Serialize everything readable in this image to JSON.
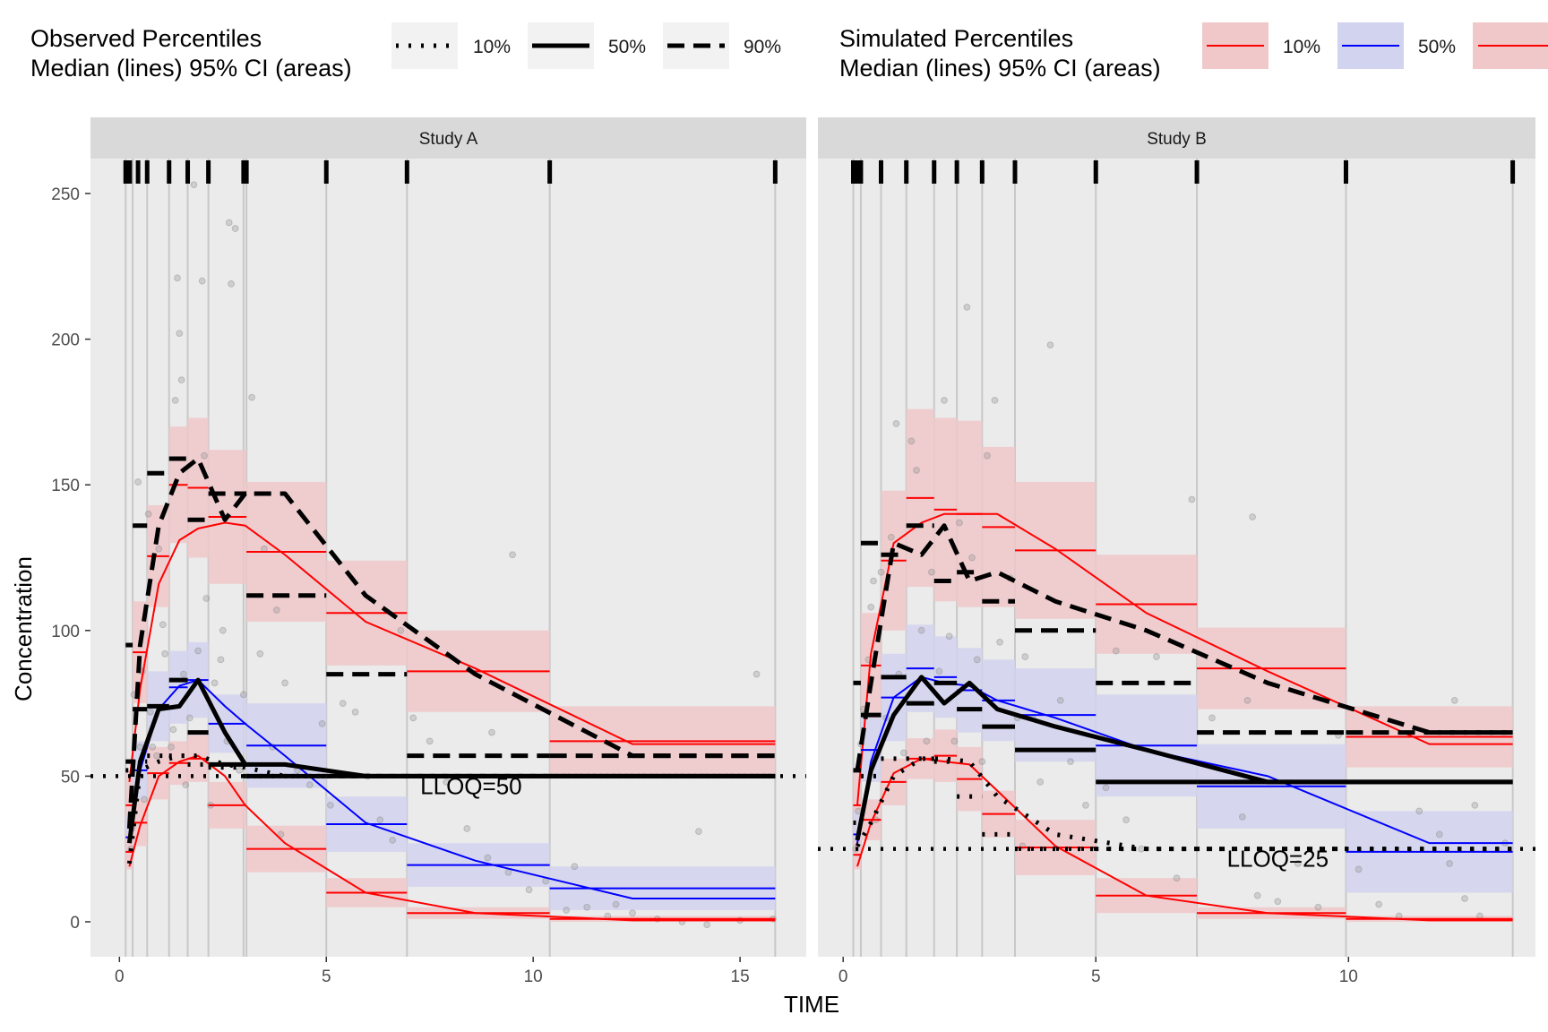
{
  "legend": {
    "observed": {
      "title_line1": "Observed Percentiles",
      "title_line2": "Median (lines) 95% CI (areas)",
      "items": [
        {
          "label": "10%",
          "dash": "dotted"
        },
        {
          "label": "50%",
          "dash": "solid"
        },
        {
          "label": "90%",
          "dash": "dashed"
        }
      ]
    },
    "simulated": {
      "title_line1": "Simulated Percentiles",
      "title_line2": "Median (lines) 95% CI (areas)",
      "items": [
        {
          "label": "10%",
          "color": "#ff0000",
          "fill": "#f0c8ca"
        },
        {
          "label": "50%",
          "color": "#0000ff",
          "fill": "#d2d3ef"
        },
        {
          "label": "",
          "color": "#ff0000",
          "fill": "#f0c8ca"
        }
      ]
    }
  },
  "axes": {
    "xlabel": "TIME",
    "ylabel": "Concentration",
    "ylim": [
      -12,
      262
    ],
    "yticks": [
      0,
      50,
      100,
      150,
      200,
      250
    ]
  },
  "colors": {
    "panel_bg": "#ebebeb",
    "strip_bg": "#d9d9d9",
    "gridline": "#c8c8c8",
    "sim_lo_hi": "#ff0000",
    "sim_med": "#0000ff",
    "ci_lo_hi": "#f0c8ca",
    "ci_med": "#d2d3ef",
    "points": "#999999"
  },
  "chart_data": [
    {
      "type": "line",
      "panel": "Study A",
      "xlim": [
        -0.7,
        16.6
      ],
      "xticks": [
        0,
        5,
        10,
        15
      ],
      "lloq": 50,
      "lloq_label": "LLOQ=50",
      "lloq_label_x": 8.5,
      "bins": [
        {
          "lo": 0.15,
          "hi": 0.32
        },
        {
          "lo": 0.32,
          "hi": 0.67
        },
        {
          "lo": 0.67,
          "hi": 1.2
        },
        {
          "lo": 1.2,
          "hi": 1.65
        },
        {
          "lo": 1.65,
          "hi": 2.15
        },
        {
          "lo": 2.15,
          "hi": 3.0
        },
        {
          "lo": 3.0,
          "hi": 3.07
        },
        {
          "lo": 3.07,
          "hi": 5.0
        },
        {
          "lo": 5.0,
          "hi": 6.95
        },
        {
          "lo": 6.95,
          "hi": 10.4
        },
        {
          "lo": 10.4,
          "hi": 15.85
        }
      ],
      "bin_edges": [
        0.15,
        0.32,
        0.67,
        1.2,
        1.65,
        2.15,
        3.0,
        3.07,
        5.0,
        6.95,
        10.4,
        15.85
      ],
      "sim_ci": {
        "p10": [
          [
            18,
            30
          ],
          [
            26,
            42
          ],
          [
            42,
            60
          ],
          [
            47,
            62
          ],
          [
            48,
            64
          ],
          [
            32,
            48
          ],
          [
            32,
            48
          ],
          [
            17,
            33
          ],
          [
            5,
            15
          ],
          [
            1,
            5
          ],
          [
            0,
            2
          ]
        ],
        "p50": [
          [
            22,
            36
          ],
          [
            42,
            62
          ],
          [
            62,
            86
          ],
          [
            68,
            93
          ],
          [
            70,
            96
          ],
          [
            58,
            78
          ],
          [
            58,
            78
          ],
          [
            46,
            75
          ],
          [
            24,
            43
          ],
          [
            12,
            27
          ],
          [
            4,
            19
          ]
        ],
        "p90": [
          [
            28,
            52
          ],
          [
            75,
            110
          ],
          [
            108,
            143
          ],
          [
            130,
            170
          ],
          [
            125,
            173
          ],
          [
            116,
            162
          ],
          [
            116,
            162
          ],
          [
            103,
            151
          ],
          [
            88,
            124
          ],
          [
            72,
            100
          ],
          [
            50,
            74
          ]
        ]
      },
      "sim_median": {
        "x": [
          0.24,
          0.5,
          0.95,
          1.45,
          1.9,
          2.55,
          3.04,
          4.0,
          5.95,
          8.6,
          12.4,
          15.85
        ],
        "p10": [
          19,
          33,
          50,
          55,
          57,
          50,
          40,
          27,
          10,
          3,
          0.5,
          0.5
        ],
        "p50": [
          30,
          52,
          73,
          81,
          83,
          74,
          68,
          57,
          34,
          21,
          8,
          8
        ],
        "p90": [
          48,
          80,
          116,
          131,
          135,
          137,
          136,
          126,
          103,
          87,
          61,
          61
        ]
      },
      "obs_median": {
        "x": [
          0.24,
          0.5,
          0.95,
          1.45,
          1.9,
          2.55,
          3.04,
          4.0,
          5.95,
          8.6,
          12.4,
          15.85
        ],
        "p10": [
          20,
          52,
          55,
          57,
          57,
          54,
          53,
          50,
          50,
          50,
          50,
          50
        ],
        "p50": [
          27,
          55,
          73,
          74,
          83,
          65,
          54,
          54,
          50,
          50,
          50,
          50
        ],
        "p90": [
          32,
          95,
          136,
          154,
          159,
          138,
          147,
          147,
          112,
          85,
          57,
          57
        ]
      },
      "observations": [
        [
          0.28,
          25
        ],
        [
          0.3,
          32
        ],
        [
          0.35,
          78
        ],
        [
          0.45,
          151
        ],
        [
          0.5,
          60
        ],
        [
          0.55,
          86
        ],
        [
          0.7,
          140
        ],
        [
          0.75,
          72
        ],
        [
          0.8,
          60
        ],
        [
          0.9,
          57
        ],
        [
          0.95,
          128
        ],
        [
          1.05,
          102
        ],
        [
          1.1,
          92
        ],
        [
          1.3,
          66
        ],
        [
          1.35,
          179
        ],
        [
          1.4,
          221
        ],
        [
          1.45,
          202
        ],
        [
          1.5,
          186
        ],
        [
          1.55,
          85
        ],
        [
          1.6,
          47
        ],
        [
          1.7,
          70
        ],
        [
          1.8,
          253
        ],
        [
          1.9,
          93
        ],
        [
          2.0,
          220
        ],
        [
          2.05,
          160
        ],
        [
          2.1,
          111
        ],
        [
          2.2,
          40
        ],
        [
          2.3,
          82
        ],
        [
          2.5,
          100
        ],
        [
          2.6,
          62
        ],
        [
          2.65,
          240
        ],
        [
          2.7,
          219
        ],
        [
          2.8,
          238
        ],
        [
          2.9,
          52
        ],
        [
          3.0,
          78
        ],
        [
          3.2,
          180
        ],
        [
          3.4,
          92
        ],
        [
          3.5,
          128
        ],
        [
          3.7,
          60
        ],
        [
          3.9,
          30
        ],
        [
          4.0,
          82
        ],
        [
          4.3,
          52
        ],
        [
          4.6,
          47
        ],
        [
          4.9,
          68
        ],
        [
          5.1,
          40
        ],
        [
          5.4,
          75
        ],
        [
          5.7,
          72
        ],
        [
          6.0,
          50
        ],
        [
          6.3,
          35
        ],
        [
          6.6,
          28
        ],
        [
          7.1,
          70
        ],
        [
          7.5,
          62
        ],
        [
          7.9,
          48
        ],
        [
          8.4,
          32
        ],
        [
          8.9,
          22
        ],
        [
          9.4,
          17
        ],
        [
          9.9,
          11
        ],
        [
          10.3,
          14
        ],
        [
          10.8,
          4
        ],
        [
          11.3,
          5
        ],
        [
          11.8,
          2
        ],
        [
          12.4,
          3
        ],
        [
          13.0,
          1
        ],
        [
          13.6,
          0
        ],
        [
          14.2,
          -1
        ],
        [
          15.0,
          0.5
        ],
        [
          15.4,
          85
        ],
        [
          15.8,
          1
        ],
        [
          0.6,
          42
        ],
        [
          1.25,
          60
        ],
        [
          2.45,
          90
        ],
        [
          3.8,
          107
        ],
        [
          6.8,
          100
        ],
        [
          9.0,
          65
        ],
        [
          9.5,
          126
        ],
        [
          11.0,
          19
        ],
        [
          12.0,
          6
        ],
        [
          14.0,
          31
        ]
      ],
      "rug_x": [
        0.15,
        0.25,
        0.45,
        0.67,
        1.2,
        1.65,
        2.15,
        3.0,
        3.07,
        5.0,
        6.95,
        10.4,
        15.85
      ]
    },
    {
      "type": "line",
      "panel": "Study B",
      "xlim": [
        -0.5,
        13.7
      ],
      "xticks": [
        0,
        5,
        10
      ],
      "lloq": 25,
      "lloq_label": "LLOQ=25",
      "lloq_label_x": 8.6,
      "bins": [
        {
          "lo": 0.2,
          "hi": 0.35
        },
        {
          "lo": 0.35,
          "hi": 0.75
        },
        {
          "lo": 0.75,
          "hi": 1.25
        },
        {
          "lo": 1.25,
          "hi": 1.8
        },
        {
          "lo": 1.8,
          "hi": 2.25
        },
        {
          "lo": 2.25,
          "hi": 2.75
        },
        {
          "lo": 2.75,
          "hi": 3.4
        },
        {
          "lo": 3.4,
          "hi": 5.0
        },
        {
          "lo": 5.0,
          "hi": 7.0
        },
        {
          "lo": 7.0,
          "hi": 9.95
        },
        {
          "lo": 9.95,
          "hi": 13.25
        }
      ],
      "bin_edges": [
        0.2,
        0.35,
        0.75,
        1.25,
        1.8,
        2.25,
        2.75,
        3.4,
        5.0,
        7.0,
        9.95,
        13.25
      ],
      "sim_ci": {
        "p10": [
          [
            18,
            28
          ],
          [
            28,
            42
          ],
          [
            40,
            56
          ],
          [
            49,
            63
          ],
          [
            48,
            66
          ],
          [
            38,
            60
          ],
          [
            29,
            45
          ],
          [
            16,
            35
          ],
          [
            3,
            15
          ],
          [
            1,
            5
          ],
          [
            0,
            2
          ]
        ],
        "p50": [
          [
            22,
            38
          ],
          [
            48,
            70
          ],
          [
            62,
            92
          ],
          [
            72,
            102
          ],
          [
            70,
            98
          ],
          [
            65,
            94
          ],
          [
            62,
            90
          ],
          [
            55,
            87
          ],
          [
            43,
            78
          ],
          [
            32,
            61
          ],
          [
            10,
            38
          ]
        ],
        "p90": [
          [
            28,
            52
          ],
          [
            70,
            106
          ],
          [
            100,
            148
          ],
          [
            115,
            176
          ],
          [
            110,
            173
          ],
          [
            108,
            172
          ],
          [
            108,
            163
          ],
          [
            104,
            151
          ],
          [
            92,
            126
          ],
          [
            73,
            101
          ],
          [
            53,
            74
          ]
        ]
      },
      "sim_median": {
        "x": [
          0.28,
          0.55,
          1.0,
          1.55,
          2.0,
          2.5,
          3.05,
          4.2,
          6.0,
          8.4,
          11.6,
          13.25
        ],
        "p10": [
          19,
          34,
          51,
          56,
          55,
          54,
          45,
          26,
          9,
          3,
          0.5,
          0.5
        ],
        "p50": [
          27,
          55,
          77,
          84,
          82,
          81,
          76,
          70,
          59,
          50,
          27,
          27
        ],
        "p90": [
          40,
          92,
          130,
          137,
          140,
          140,
          140,
          128,
          106,
          86,
          61,
          61
        ]
      },
      "obs_median": {
        "x": [
          0.28,
          0.55,
          1.0,
          1.55,
          2.0,
          2.5,
          3.05,
          4.2,
          6.0,
          8.4,
          11.6,
          13.25
        ],
        "p10": [
          26,
          34,
          50,
          56,
          56,
          55,
          43,
          30,
          25,
          25,
          25,
          25
        ],
        "p50": [
          28,
          52,
          71,
          84,
          75,
          82,
          73,
          67,
          59,
          48,
          48,
          48
        ],
        "p90": [
          52,
          82,
          130,
          126,
          136,
          117,
          120,
          110,
          100,
          82,
          65,
          65
        ]
      },
      "observations": [
        [
          0.25,
          25
        ],
        [
          0.3,
          38
        ],
        [
          0.35,
          61
        ],
        [
          0.4,
          73
        ],
        [
          0.5,
          90
        ],
        [
          0.55,
          108
        ],
        [
          0.6,
          117
        ],
        [
          0.65,
          35
        ],
        [
          0.75,
          120
        ],
        [
          0.85,
          70
        ],
        [
          0.95,
          132
        ],
        [
          1.05,
          171
        ],
        [
          1.1,
          85
        ],
        [
          1.2,
          58
        ],
        [
          1.35,
          165
        ],
        [
          1.45,
          155
        ],
        [
          1.55,
          100
        ],
        [
          1.65,
          62
        ],
        [
          1.75,
          120
        ],
        [
          1.9,
          86
        ],
        [
          2.0,
          179
        ],
        [
          2.1,
          98
        ],
        [
          2.2,
          62
        ],
        [
          2.3,
          137
        ],
        [
          2.45,
          211
        ],
        [
          2.55,
          125
        ],
        [
          2.65,
          90
        ],
        [
          2.75,
          55
        ],
        [
          2.85,
          160
        ],
        [
          3.0,
          179
        ],
        [
          3.1,
          96
        ],
        [
          3.3,
          118
        ],
        [
          3.45,
          70
        ],
        [
          3.6,
          91
        ],
        [
          3.75,
          70
        ],
        [
          3.9,
          48
        ],
        [
          4.1,
          198
        ],
        [
          4.3,
          76
        ],
        [
          4.5,
          55
        ],
        [
          4.8,
          40
        ],
        [
          5.2,
          46
        ],
        [
          5.6,
          35
        ],
        [
          5.9,
          25
        ],
        [
          6.2,
          91
        ],
        [
          6.6,
          15
        ],
        [
          6.9,
          145
        ],
        [
          7.3,
          70
        ],
        [
          7.6,
          52
        ],
        [
          7.9,
          36
        ],
        [
          8.2,
          9
        ],
        [
          8.6,
          7
        ],
        [
          9.0,
          20
        ],
        [
          9.4,
          5
        ],
        [
          10.2,
          18
        ],
        [
          10.6,
          6
        ],
        [
          11.0,
          2
        ],
        [
          11.4,
          38
        ],
        [
          11.8,
          30
        ],
        [
          12.0,
          20
        ],
        [
          12.3,
          8
        ],
        [
          12.6,
          2
        ],
        [
          13.1,
          27
        ],
        [
          3.55,
          26
        ],
        [
          5.4,
          93
        ],
        [
          8.0,
          76
        ],
        [
          9.8,
          64
        ],
        [
          12.1,
          76
        ],
        [
          8.1,
          139
        ],
        [
          12.5,
          40
        ]
      ],
      "rug_x": [
        0.2,
        0.28,
        0.35,
        0.75,
        1.25,
        1.8,
        2.25,
        2.75,
        3.4,
        5.0,
        7.0,
        9.95,
        13.25
      ]
    }
  ]
}
